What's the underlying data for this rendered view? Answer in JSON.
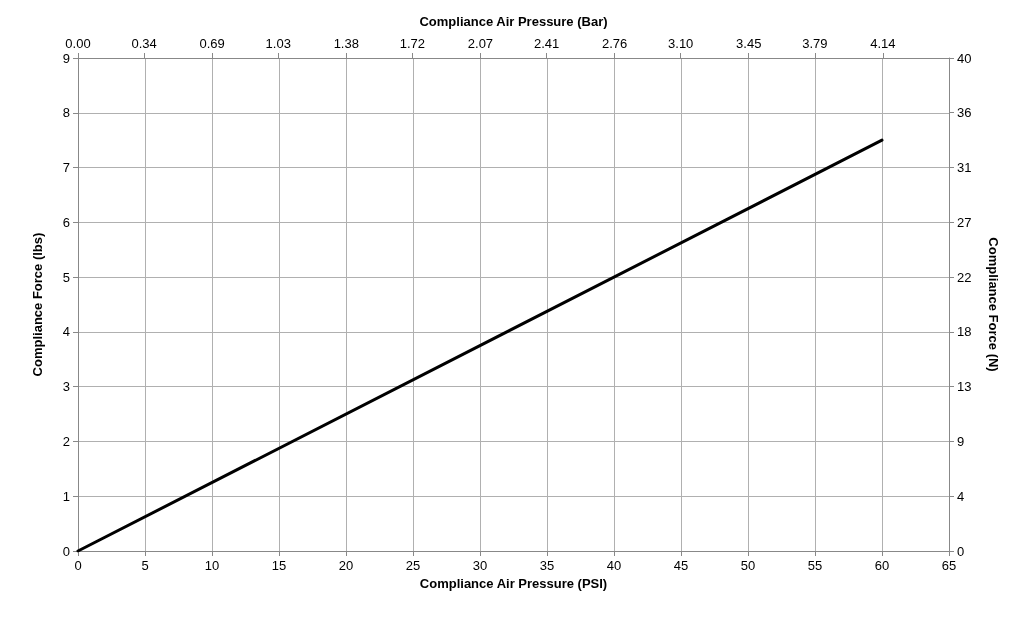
{
  "chart_data": {
    "type": "line",
    "xlabel": "Compliance Air Pressure (PSI)",
    "ylabel": "Compliance Force (lbs)",
    "x2label": "Compliance Air Pressure (Bar)",
    "y2label": "Compliance Force (N)",
    "x": [
      0,
      60
    ],
    "series": [
      {
        "color": "#000000",
        "values": [
          0,
          7.5
        ]
      }
    ],
    "xlim": [
      0,
      65
    ],
    "xticks": [
      0,
      5,
      10,
      15,
      20,
      25,
      30,
      35,
      40,
      45,
      50,
      55,
      60,
      65
    ],
    "ylim": [
      0,
      9
    ],
    "yticks": [
      0,
      1,
      2,
      3,
      4,
      5,
      6,
      7,
      8,
      9
    ],
    "x2lim": [
      0,
      4.48
    ],
    "x2ticks": [
      {
        "value": 0,
        "label": "0.00"
      },
      {
        "value": 0.34,
        "label": "0.34"
      },
      {
        "value": 0.69,
        "label": "0.69"
      },
      {
        "value": 1.03,
        "label": "1.03"
      },
      {
        "value": 1.38,
        "label": "1.38"
      },
      {
        "value": 1.72,
        "label": "1.72"
      },
      {
        "value": 2.07,
        "label": "2.07"
      },
      {
        "value": 2.41,
        "label": "2.41"
      },
      {
        "value": 2.76,
        "label": "2.76"
      },
      {
        "value": 3.1,
        "label": "3.10"
      },
      {
        "value": 3.45,
        "label": "3.45"
      },
      {
        "value": 3.79,
        "label": "3.79"
      },
      {
        "value": 4.14,
        "label": "4.14"
      }
    ],
    "y2lim": [
      0,
      40.03
    ],
    "y2ticks": [
      {
        "value": 0,
        "label": "0"
      },
      {
        "value": 4.45,
        "label": "4"
      },
      {
        "value": 8.9,
        "label": "9"
      },
      {
        "value": 13.34,
        "label": "13"
      },
      {
        "value": 17.79,
        "label": "18"
      },
      {
        "value": 22.24,
        "label": "22"
      },
      {
        "value": 26.69,
        "label": "27"
      },
      {
        "value": 31.14,
        "label": "31"
      },
      {
        "value": 35.59,
        "label": "36"
      },
      {
        "value": 40.03,
        "label": "40"
      }
    ],
    "grid": true,
    "marker": "none",
    "line_style": "solid"
  }
}
